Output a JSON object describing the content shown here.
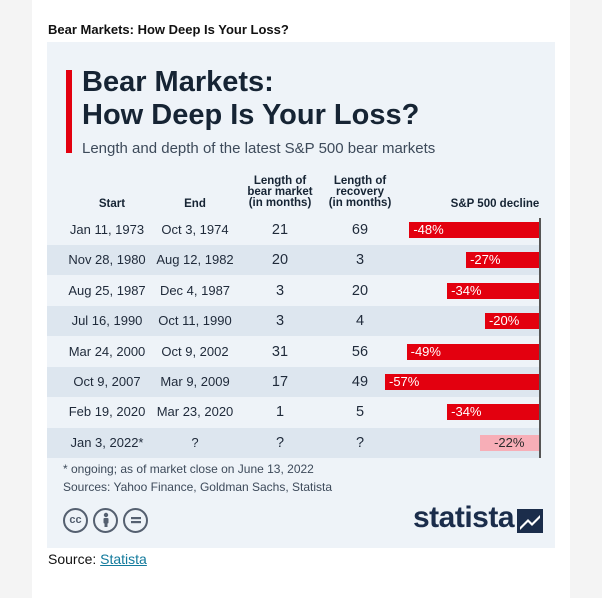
{
  "caption": "Bear Markets: How Deep Is Your Loss?",
  "infographic": {
    "title_line1": "Bear Markets:",
    "title_line2": "How Deep Is Your Loss?",
    "subtitle": "Length and depth of the latest S&P 500 bear markets",
    "headers": {
      "start": "Start",
      "end": "End",
      "length_l1": "Length of",
      "length_l2": "bear market",
      "length_l3": "(in months)",
      "recovery_l1": "Length of",
      "recovery_l2": "recovery",
      "recovery_l3": "(in months)",
      "decline": "S&P 500 decline"
    },
    "footnote": "* ongoing; as of market close on June 13, 2022",
    "sources": "Sources: Yahoo Finance, Goldman Sachs, Statista",
    "logo_text": "statista",
    "icons": [
      "cc-icon",
      "attribution-icon",
      "no-derivatives-icon"
    ]
  },
  "source_line": {
    "label": "Source:",
    "link": "Statista"
  },
  "colors": {
    "accent_red": "#e3000f",
    "pending_pink": "#f7aeb7",
    "card_bg": "#eef3f8",
    "row_alt": "#dde6ef",
    "navy": "#1b2d4b"
  },
  "chart_data": {
    "type": "table",
    "columns": [
      "Start",
      "End",
      "Length of bear market (in months)",
      "Length of recovery (in months)",
      "S&P 500 decline"
    ],
    "rows": [
      {
        "start": "Jan 11, 1973",
        "end": "Oct 3, 1974",
        "length": "21",
        "recovery": "69",
        "decline": -48,
        "decline_label": "-48%",
        "ongoing": false
      },
      {
        "start": "Nov 28, 1980",
        "end": "Aug 12, 1982",
        "length": "20",
        "recovery": "3",
        "decline": -27,
        "decline_label": "-27%",
        "ongoing": false
      },
      {
        "start": "Aug 25, 1987",
        "end": "Dec 4, 1987",
        "length": "3",
        "recovery": "20",
        "decline": -34,
        "decline_label": "-34%",
        "ongoing": false
      },
      {
        "start": "Jul 16, 1990",
        "end": "Oct 11, 1990",
        "length": "3",
        "recovery": "4",
        "decline": -20,
        "decline_label": "-20%",
        "ongoing": false
      },
      {
        "start": "Mar 24, 2000",
        "end": "Oct 9, 2002",
        "length": "31",
        "recovery": "56",
        "decline": -49,
        "decline_label": "-49%",
        "ongoing": false
      },
      {
        "start": "Oct 9, 2007",
        "end": "Mar 9, 2009",
        "length": "17",
        "recovery": "49",
        "decline": -57,
        "decline_label": "-57%",
        "ongoing": false
      },
      {
        "start": "Feb 19, 2020",
        "end": "Mar 23, 2020",
        "length": "1",
        "recovery": "5",
        "decline": -34,
        "decline_label": "-34%",
        "ongoing": false
      },
      {
        "start": "Jan 3, 2022*",
        "end": "?",
        "length": "?",
        "recovery": "?",
        "decline": -22,
        "decline_label": "-22%",
        "ongoing": true
      }
    ],
    "decline_axis_max": 57
  }
}
